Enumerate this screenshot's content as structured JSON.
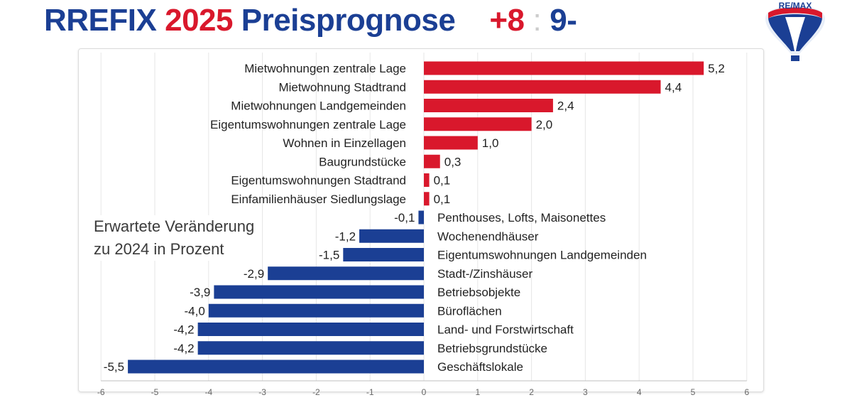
{
  "header": {
    "title_prefix": "RREFIX",
    "title_year": "2025",
    "title_suffix": "Preisprognose",
    "score_up": "+8",
    "score_sep": ":",
    "score_down": "9-"
  },
  "logo": {
    "brand_text": "RE/MAX"
  },
  "colors": {
    "positive": "#d9182c",
    "negative": "#1b3f94",
    "title_blue": "#1b3f94",
    "title_red": "#d9182c"
  },
  "chart_data": {
    "type": "bar",
    "orientation": "horizontal",
    "categories": [
      "Mietwohnungen zentrale Lage",
      "Mietwohnung Stadtrand",
      "Mietwohnungen Landgemeinden",
      "Eigentumswohnungen zentrale Lage",
      "Wohnen in Einzellagen",
      "Baugrundstücke",
      "Eigentumswohnungen Stadtrand",
      "Einfamilienhäuser Siedlungslage",
      "Penthouses, Lofts, Maisonettes",
      "Wochenendhäuser",
      "Eigentumswohnungen Landgemeinden",
      "Stadt-/Zinshäuser",
      "Betriebsobjekte",
      "Büroflächen",
      "Land- und Forstwirtschaft",
      "Betriebsgrundstücke",
      "Geschäftslokale"
    ],
    "values": [
      5.2,
      4.4,
      2.4,
      2.0,
      1.0,
      0.3,
      0.1,
      0.1,
      -0.1,
      -1.2,
      -1.5,
      -2.9,
      -3.9,
      -4.0,
      -4.2,
      -4.2,
      -5.5
    ],
    "value_labels": [
      "5,2",
      "4,4",
      "2,4",
      "2,0",
      "1,0",
      "0,3",
      "0,1",
      "0,1",
      "-0,1",
      "-1,2",
      "-1,5",
      "-2,9",
      "-3,9",
      "-4,0",
      "-4,2",
      "-4,2",
      "-5,5"
    ],
    "xlim": [
      -6,
      6
    ],
    "xticks": [
      -6,
      -5,
      -4,
      -3,
      -2,
      -1,
      0,
      1,
      2,
      3,
      4,
      5,
      6
    ],
    "grid": true,
    "annotation": [
      "Erwartete Veränderung",
      "zu 2024 in Prozent"
    ]
  }
}
